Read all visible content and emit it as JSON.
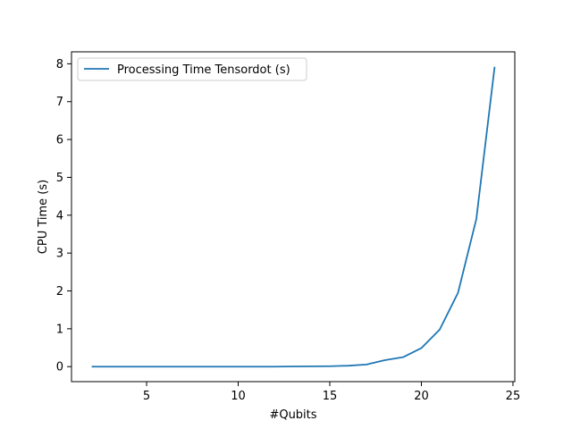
{
  "chart_data": {
    "type": "line",
    "title": "",
    "xlabel": "#Qubits",
    "ylabel": "CPU Time (s)",
    "xlim": [
      0.9,
      25.1
    ],
    "ylim": [
      -0.396,
      8.316
    ],
    "xticks": [
      5,
      10,
      15,
      20,
      25
    ],
    "yticks": [
      0,
      1,
      2,
      3,
      4,
      5,
      6,
      7,
      8
    ],
    "grid": false,
    "legend_position": "upper left",
    "series": [
      {
        "name": "Processing Time Tensordot (s)",
        "color": "#1f77b4",
        "x": [
          2,
          3,
          4,
          5,
          6,
          7,
          8,
          9,
          10,
          11,
          12,
          13,
          14,
          15,
          16,
          17,
          18,
          19,
          20,
          21,
          22,
          23,
          24
        ],
        "y": [
          0.0,
          0.0,
          0.0,
          0.0,
          0.0,
          0.0,
          0.0,
          0.0,
          0.0,
          0.0,
          0.0,
          0.005,
          0.008,
          0.012,
          0.025,
          0.055,
          0.17,
          0.25,
          0.49,
          0.98,
          1.95,
          3.9,
          7.92
        ]
      }
    ]
  }
}
